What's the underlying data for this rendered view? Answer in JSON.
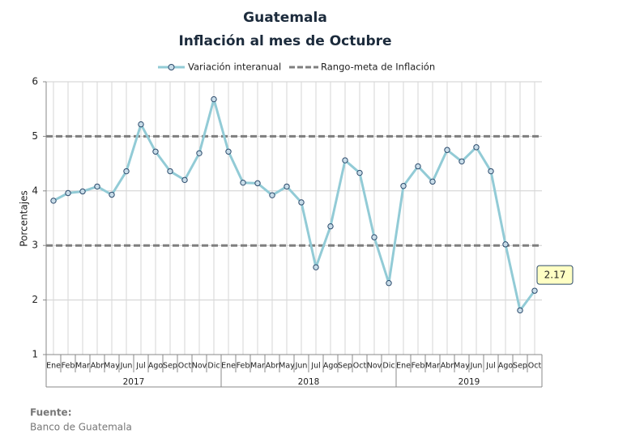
{
  "chart_data": {
    "type": "line",
    "title": "Guatemala",
    "subtitle": "Inflación al mes de Octubre",
    "y_label": "Porcentajes",
    "category_groups": [
      {
        "label": "2017",
        "categories": [
          "Ene",
          "Feb",
          "Mar",
          "Abr",
          "May",
          "Jun",
          "Jul",
          "Ago",
          "Sep",
          "Oct",
          "Nov",
          "Dic"
        ]
      },
      {
        "label": "2018",
        "categories": [
          "Ene",
          "Feb",
          "Mar",
          "Abr",
          "May",
          "Jun",
          "Jul",
          "Ago",
          "Sep",
          "Oct",
          "Nov",
          "Dic"
        ]
      },
      {
        "label": "2019",
        "categories": [
          "Ene",
          "Feb",
          "Mar",
          "Abr",
          "May",
          "Jun",
          "Jul",
          "Ago",
          "Sep",
          "Oct"
        ]
      }
    ],
    "series": [
      {
        "name": "Variación interanual",
        "color": "#92cbd6",
        "values": [
          3.82,
          3.96,
          3.99,
          4.08,
          3.93,
          4.36,
          5.22,
          4.72,
          4.36,
          4.2,
          4.69,
          5.68,
          4.72,
          4.15,
          4.14,
          3.92,
          4.08,
          3.79,
          2.6,
          3.35,
          4.56,
          4.33,
          3.15,
          2.31,
          4.09,
          4.45,
          4.17,
          4.75,
          4.54,
          4.8,
          4.36,
          3.02,
          1.81,
          2.17
        ]
      }
    ],
    "reference_lines": {
      "name": "Rango-meta de Inflación",
      "color": "#7f7f7f",
      "values": [
        3,
        5
      ]
    },
    "ylim": [
      1,
      6
    ],
    "yticks": [
      1,
      2,
      3,
      4,
      5,
      6
    ],
    "grid": true,
    "source_label": "Fuente:",
    "source": "Banco de Guatemala"
  }
}
